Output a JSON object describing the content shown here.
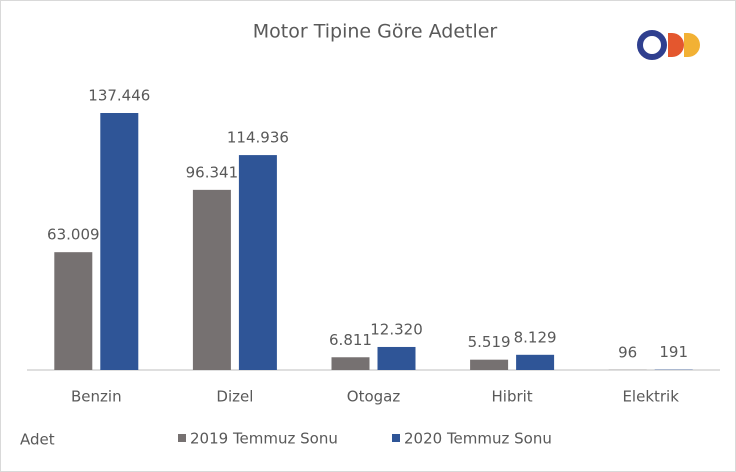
{
  "chart_data": {
    "type": "bar",
    "title": "Motor Tipine Göre Adetler",
    "y_label": "Adet",
    "categories": [
      "Benzin",
      "Dizel",
      "Otogaz",
      "Hibrit",
      "Elektrik"
    ],
    "series": [
      {
        "name": "2019 Temmuz Sonu",
        "color": "#767171",
        "values": [
          63009,
          96341,
          6811,
          5519,
          96
        ],
        "value_labels": [
          "63.009",
          "96.341",
          "6.811",
          "5.519",
          "96"
        ]
      },
      {
        "name": "2020 Temmuz Sonu",
        "color": "#2f5597",
        "values": [
          137446,
          114936,
          12320,
          8129,
          191
        ],
        "value_labels": [
          "137.446",
          "114.936",
          "12.320",
          "8.129",
          "191"
        ]
      }
    ]
  }
}
